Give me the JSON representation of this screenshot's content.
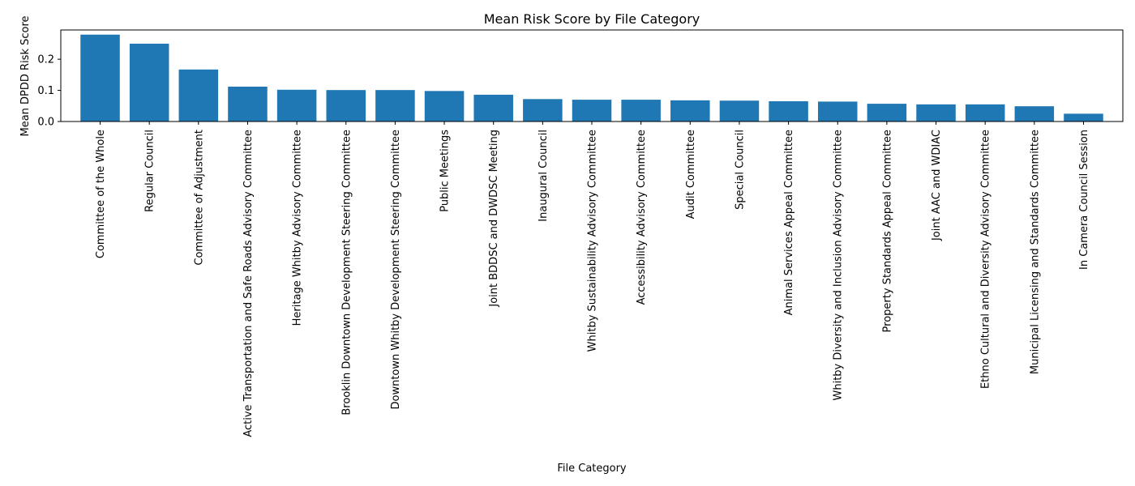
{
  "chart_data": {
    "type": "bar",
    "title": "Mean Risk Score by File Category",
    "xlabel": "File Category",
    "ylabel": "Mean DPDD Risk Score",
    "ylim": [
      0,
      0.294
    ],
    "yticks": [
      "0.0",
      "0.1",
      "0.2"
    ],
    "ytick_values": [
      0,
      0.1,
      0.2
    ],
    "grid": false,
    "bar_color": "#1f77b4",
    "categories": [
      "Committee of the Whole",
      "Regular Council",
      "Committee of Adjustment",
      "Active Transportation and Safe Roads Advisory Committee",
      "Heritage Whitby Advisory Committee",
      "Brooklin Downtown Development Steering Committee",
      "Downtown Whitby Development Steering Committee",
      "Public Meetings",
      "Joint BDDSC and DWDSC Meeting",
      "Inaugural Council",
      "Whitby Sustainability Advisory Committee",
      "Accessibility Advisory Committee",
      "Audit Committee",
      "Special Council",
      "Animal Services Appeal Committee",
      "Whitby Diversity and Inclusion Advisory Committee",
      "Property Standards Appeal Committee",
      "Joint AAC and WDIAC",
      "Ethno Cultural and Diversity Advisory Committee",
      "Municipal Licensing and Standards Committee",
      "In Camera Council Session"
    ],
    "values": [
      0.279,
      0.25,
      0.167,
      0.112,
      0.102,
      0.101,
      0.101,
      0.098,
      0.086,
      0.072,
      0.07,
      0.07,
      0.068,
      0.067,
      0.065,
      0.064,
      0.057,
      0.055,
      0.055,
      0.049,
      0.025
    ]
  }
}
